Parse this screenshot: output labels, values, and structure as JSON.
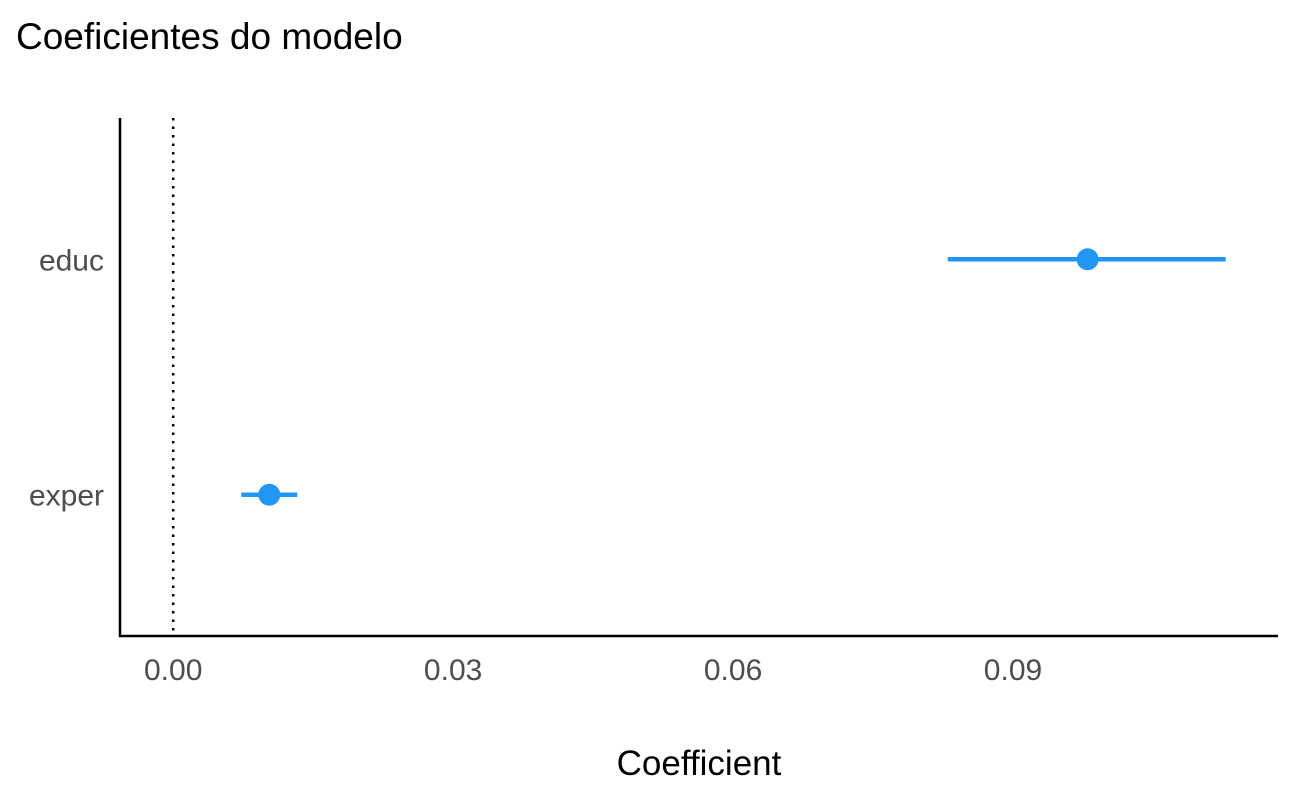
{
  "chart_data": {
    "type": "coefficient",
    "title": "Coeficientes do modelo",
    "xlabel": "Coefficient",
    "ylabel": "",
    "xlim": [
      -0.0057,
      0.1184
    ],
    "x_ticks": [
      0.0,
      0.03,
      0.06,
      0.09
    ],
    "x_tick_labels": [
      "0.00",
      "0.03",
      "0.06",
      "0.09"
    ],
    "reference_line": 0.0,
    "grid": false,
    "categories": [
      "educ",
      "exper"
    ],
    "series": [
      {
        "values": [
          0.098,
          0.0103
        ],
        "ci_low": [
          0.083,
          0.0073
        ],
        "ci_high": [
          0.1128,
          0.0133
        ]
      }
    ],
    "colors": {
      "point": "#2196F3",
      "axis": "#000000",
      "tick_label": "#4D4D4D",
      "text": "#000000"
    }
  }
}
